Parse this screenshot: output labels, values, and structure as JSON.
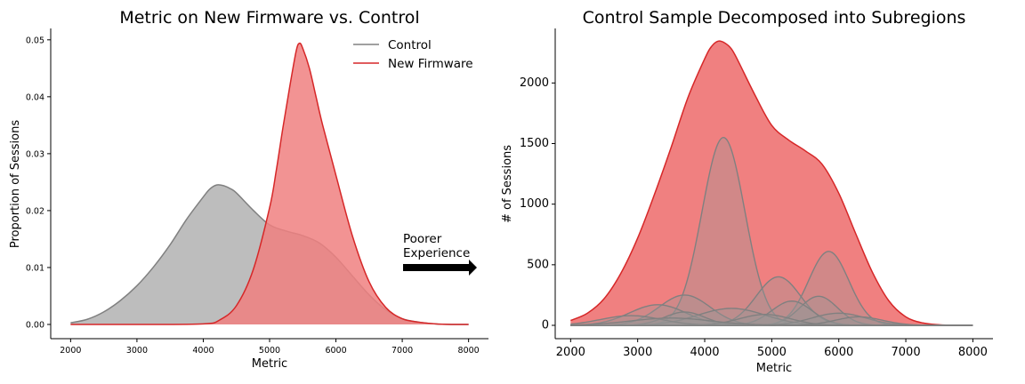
{
  "chart_data": [
    {
      "type": "area",
      "title": "Metric on New Firmware vs. Control",
      "xlabel": "Metric",
      "ylabel": "Proportion of Sessions",
      "xlim": [
        1700,
        8300
      ],
      "ylim": [
        -0.0025,
        0.052
      ],
      "xticks": [
        2000,
        3000,
        4000,
        5000,
        6000,
        7000,
        8000
      ],
      "xtick_labels": [
        "2000",
        "3000",
        "4000",
        "5000",
        "6000",
        "7000",
        "8000"
      ],
      "yticks": [
        0,
        0.01,
        0.02,
        0.03,
        0.04,
        0.05
      ],
      "ytick_labels": [
        "0.00",
        "0.01",
        "0.02",
        "0.03",
        "0.04",
        "0.05"
      ],
      "grid": false,
      "legend": "top-right",
      "series": [
        {
          "name": "Control",
          "color": "#808080",
          "fill": "#bdbdbd",
          "x": [
            2000,
            2250,
            2500,
            2750,
            3000,
            3250,
            3500,
            3750,
            4000,
            4100,
            4200,
            4300,
            4400,
            4500,
            4750,
            5000,
            5250,
            5500,
            5750,
            6000,
            6250,
            6500,
            6750,
            7000,
            7250,
            7500,
            7750,
            8000
          ],
          "y": [
            0.0003,
            0.0009,
            0.0022,
            0.0042,
            0.0068,
            0.0101,
            0.014,
            0.0185,
            0.0224,
            0.0238,
            0.0245,
            0.0244,
            0.0239,
            0.0231,
            0.0201,
            0.0175,
            0.0164,
            0.0156,
            0.0143,
            0.0118,
            0.0085,
            0.0052,
            0.0026,
            0.001,
            0.0004,
            0.0001,
            0.0,
            0.0
          ]
        },
        {
          "name": "New Firmware",
          "color": "#d62728",
          "fill": "#f08080",
          "x": [
            2000,
            3000,
            4000,
            4250,
            4500,
            4750,
            5000,
            5100,
            5200,
            5300,
            5400,
            5450,
            5500,
            5600,
            5700,
            5800,
            6000,
            6250,
            6500,
            6750,
            7000,
            7250,
            7500,
            7750,
            8000
          ],
          "y": [
            0.0,
            0.0,
            0.0001,
            0.0008,
            0.0033,
            0.0095,
            0.0205,
            0.027,
            0.0345,
            0.0415,
            0.048,
            0.0494,
            0.0485,
            0.045,
            0.04,
            0.035,
            0.0262,
            0.0155,
            0.0075,
            0.003,
            0.001,
            0.0004,
            0.0001,
            0.0,
            0.0
          ]
        }
      ],
      "annotations": [
        {
          "text": "Poorer",
          "line2": "Experience",
          "arrow_from": [
            7000,
            0.0099
          ],
          "arrow_to": [
            8100,
            0.0099
          ]
        }
      ]
    },
    {
      "type": "area",
      "title": "Control Sample Decomposed into Subregions",
      "xlabel": "Metric",
      "ylabel": "# of Sessions",
      "xlim": [
        1770,
        8300
      ],
      "ylim": [
        -110,
        2450
      ],
      "xticks": [
        2000,
        3000,
        4000,
        5000,
        6000,
        7000,
        8000
      ],
      "xtick_labels": [
        "2000",
        "3000",
        "4000",
        "5000",
        "6000",
        "7000",
        "8000"
      ],
      "yticks": [
        0,
        500,
        1000,
        1500,
        2000
      ],
      "ytick_labels": [
        "0",
        "500",
        "1000",
        "1500",
        "2000"
      ],
      "grid": false,
      "total": {
        "color": "#d62728",
        "fill": "#f08080",
        "x": [
          2000,
          2250,
          2500,
          2750,
          3000,
          3250,
          3500,
          3750,
          4000,
          4100,
          4200,
          4300,
          4400,
          4500,
          4750,
          5000,
          5250,
          5500,
          5750,
          6000,
          6250,
          6500,
          6750,
          7000,
          7250,
          7500,
          7750,
          8000
        ],
        "y": [
          40,
          100,
          220,
          430,
          720,
          1080,
          1470,
          1880,
          2200,
          2300,
          2345,
          2330,
          2280,
          2180,
          1900,
          1650,
          1530,
          1440,
          1330,
          1090,
          760,
          440,
          200,
          70,
          20,
          5,
          0,
          0
        ]
      },
      "subregions": {
        "color": "#808080",
        "fill": "#999999",
        "series": [
          {
            "peak": 1550,
            "center": 4280,
            "width": 320
          },
          {
            "peak": 610,
            "center": 5850,
            "width": 300
          },
          {
            "peak": 400,
            "center": 5100,
            "width": 330
          },
          {
            "peak": 250,
            "center": 3700,
            "width": 380
          },
          {
            "peak": 240,
            "center": 5700,
            "width": 280
          },
          {
            "peak": 200,
            "center": 5300,
            "width": 300
          },
          {
            "peak": 170,
            "center": 3300,
            "width": 420
          },
          {
            "peak": 140,
            "center": 4400,
            "width": 500
          },
          {
            "peak": 110,
            "center": 3700,
            "width": 300
          },
          {
            "peak": 100,
            "center": 6000,
            "width": 400
          },
          {
            "peak": 90,
            "center": 4900,
            "width": 380
          },
          {
            "peak": 80,
            "center": 2900,
            "width": 450
          },
          {
            "peak": 70,
            "center": 6300,
            "width": 350
          },
          {
            "peak": 60,
            "center": 3500,
            "width": 600
          }
        ]
      }
    }
  ]
}
